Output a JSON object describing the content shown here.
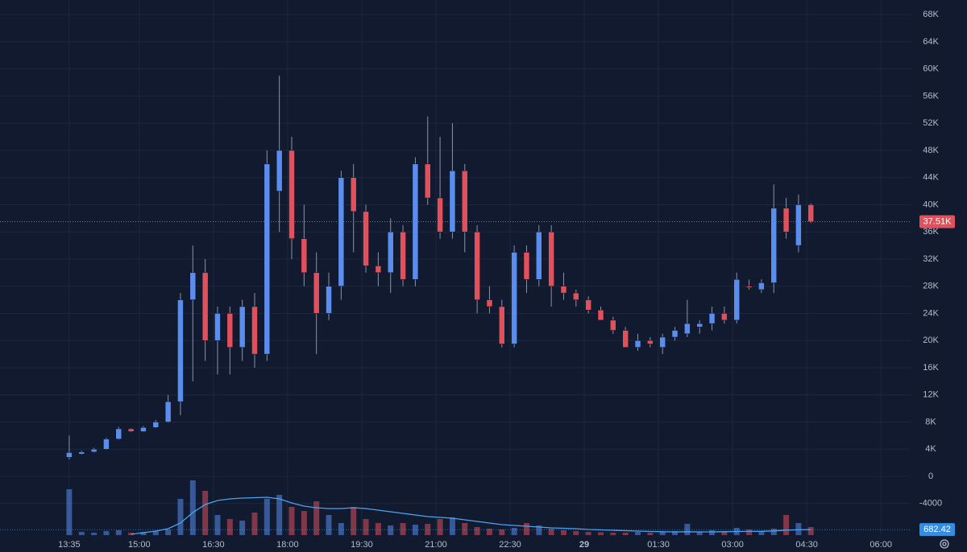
{
  "chart_data": {
    "type": "candlestick",
    "x": [
      0,
      15,
      30,
      45,
      60,
      75,
      90,
      105,
      120,
      135,
      150,
      165,
      180,
      195,
      210,
      225,
      240,
      255,
      270,
      285,
      300,
      315,
      330,
      345,
      360,
      375,
      390,
      405,
      420,
      435,
      450,
      465,
      480,
      495,
      510,
      525,
      540,
      555,
      570,
      585,
      600,
      615,
      630,
      645,
      660,
      675,
      690,
      705,
      720,
      735,
      750,
      765,
      780,
      795,
      810,
      825,
      840,
      855,
      870,
      885,
      900
    ],
    "open": [
      2800,
      3300,
      3600,
      4000,
      5500,
      7000,
      6600,
      7200,
      8000,
      11000,
      26000,
      30000,
      20000,
      24000,
      19000,
      25000,
      18000,
      42000,
      48000,
      35000,
      30000,
      24000,
      28000,
      44000,
      39000,
      31000,
      30000,
      36000,
      29000,
      46000,
      41000,
      36000,
      45000,
      36000,
      26000,
      25000,
      19500,
      33000,
      29000,
      36000,
      28000,
      27000,
      26000,
      24500,
      23000,
      21500,
      19000,
      20000,
      19000,
      20500,
      21000,
      22000,
      22500,
      24000,
      23000,
      28000,
      27500,
      28500,
      39500,
      34000,
      40000
    ],
    "high": [
      6000,
      3800,
      4200,
      5700,
      7300,
      7100,
      7400,
      8300,
      12000,
      27000,
      34000,
      32000,
      25000,
      25000,
      26000,
      27000,
      48000,
      59000,
      50000,
      40000,
      33000,
      30000,
      45000,
      46000,
      40000,
      33000,
      38000,
      37000,
      47000,
      53000,
      50000,
      52000,
      46000,
      37000,
      28000,
      26000,
      34000,
      34000,
      37000,
      37000,
      30000,
      27500,
      26500,
      25000,
      23500,
      22000,
      21000,
      20500,
      21000,
      22000,
      26000,
      23000,
      25000,
      25000,
      30000,
      29000,
      29000,
      43000,
      41000,
      41500,
      40200
    ],
    "low": [
      2500,
      3200,
      3500,
      3900,
      5400,
      6500,
      6500,
      7100,
      7900,
      9000,
      14000,
      17000,
      15000,
      15000,
      17000,
      16000,
      17000,
      36000,
      32000,
      28000,
      18000,
      23000,
      26000,
      33000,
      30000,
      28000,
      27000,
      28000,
      28000,
      40000,
      35000,
      35000,
      33000,
      24000,
      24000,
      19000,
      19000,
      27000,
      28000,
      25000,
      26000,
      25000,
      24000,
      23000,
      21000,
      19000,
      18500,
      19000,
      18000,
      20000,
      20500,
      21000,
      21500,
      22500,
      22500,
      27500,
      27000,
      27000,
      35000,
      33000,
      37300
    ],
    "close": [
      3500,
      3600,
      4000,
      5500,
      7000,
      6600,
      7200,
      8000,
      11000,
      26000,
      30000,
      20000,
      24000,
      19000,
      25000,
      18000,
      46000,
      48000,
      35000,
      30000,
      24000,
      28000,
      44000,
      39000,
      31000,
      30000,
      36000,
      29000,
      46000,
      41000,
      36000,
      45000,
      36000,
      26000,
      25000,
      19500,
      33000,
      29000,
      36000,
      28000,
      27000,
      26000,
      24500,
      23000,
      21500,
      19000,
      20000,
      19500,
      20500,
      21500,
      22500,
      22500,
      24000,
      23000,
      29000,
      27800,
      28500,
      39500,
      36000,
      40000,
      37510
    ],
    "up_color": "#5b8def",
    "down_color": "#e0515e",
    "volume": {
      "values": [
        5700,
        400,
        300,
        500,
        600,
        300,
        400,
        500,
        700,
        4500,
        6800,
        5500,
        2500,
        2000,
        1800,
        2800,
        4500,
        5000,
        3500,
        3000,
        4200,
        2500,
        1500,
        3500,
        2000,
        1500,
        1200,
        1500,
        1300,
        1400,
        2000,
        2200,
        1500,
        1000,
        800,
        700,
        900,
        1500,
        1200,
        800,
        600,
        500,
        400,
        350,
        300,
        300,
        400,
        300,
        350,
        500,
        1400,
        400,
        600,
        500,
        900,
        700,
        500,
        800,
        2500,
        1500,
        1000
      ],
      "ylim": [
        0,
        7000
      ],
      "ma": [
        null,
        null,
        null,
        null,
        null,
        100,
        300,
        500,
        800,
        1500,
        2800,
        3800,
        4300,
        4500,
        4600,
        4650,
        4700,
        4500,
        4000,
        3600,
        3400,
        3300,
        3300,
        3400,
        3300,
        3100,
        2900,
        2700,
        2500,
        2300,
        2200,
        2100,
        1900,
        1700,
        1500,
        1300,
        1200,
        1100,
        1000,
        900,
        850,
        800,
        700,
        650,
        600,
        550,
        500,
        450,
        420,
        400,
        420,
        400,
        400,
        420,
        450,
        460,
        470,
        520,
        620,
        660,
        682.42
      ],
      "ma_color": "#4aa3f0",
      "last": {
        "value": 682.42,
        "label": "682.42"
      }
    },
    "last_price": {
      "value": 37510,
      "label": "37.51K"
    },
    "xlim": [
      -84,
      1021
    ],
    "xticks": [
      {
        "value": 0,
        "label": "13:35"
      },
      {
        "value": 85,
        "label": "15:00"
      },
      {
        "value": 175,
        "label": "16:30"
      },
      {
        "value": 265,
        "label": "18:00"
      },
      {
        "value": 355,
        "label": "19:30"
      },
      {
        "value": 445,
        "label": "21:00"
      },
      {
        "value": 535,
        "label": "22:30"
      },
      {
        "value": 625,
        "label": "29"
      },
      {
        "value": 715,
        "label": "01:30"
      },
      {
        "value": 805,
        "label": "03:00"
      },
      {
        "value": 895,
        "label": "04:30"
      },
      {
        "value": 985,
        "label": "06:00"
      }
    ],
    "ylim": [
      -8650,
      70150
    ],
    "yticks": [
      {
        "value": -4000,
        "label": "-4000"
      },
      0,
      {
        "value": 4000,
        "label": "4K"
      },
      {
        "value": 8000,
        "label": "8K"
      },
      {
        "value": 12000,
        "label": "12K"
      },
      {
        "value": 16000,
        "label": "16K"
      },
      {
        "value": 20000,
        "label": "20K"
      },
      {
        "value": 24000,
        "label": "24K"
      },
      {
        "value": 28000,
        "label": "28K"
      },
      {
        "value": 32000,
        "label": "32K"
      },
      {
        "value": 36000,
        "label": "36K"
      },
      {
        "value": 40000,
        "label": "40K"
      },
      {
        "value": 44000,
        "label": "44K"
      },
      {
        "value": 48000,
        "label": "48K"
      },
      {
        "value": 52000,
        "label": "52K"
      },
      {
        "value": 56000,
        "label": "56K"
      },
      {
        "value": 60000,
        "label": "60K"
      },
      {
        "value": 64000,
        "label": "64K"
      },
      {
        "value": 68000,
        "label": "68K"
      }
    ],
    "grid": true
  }
}
